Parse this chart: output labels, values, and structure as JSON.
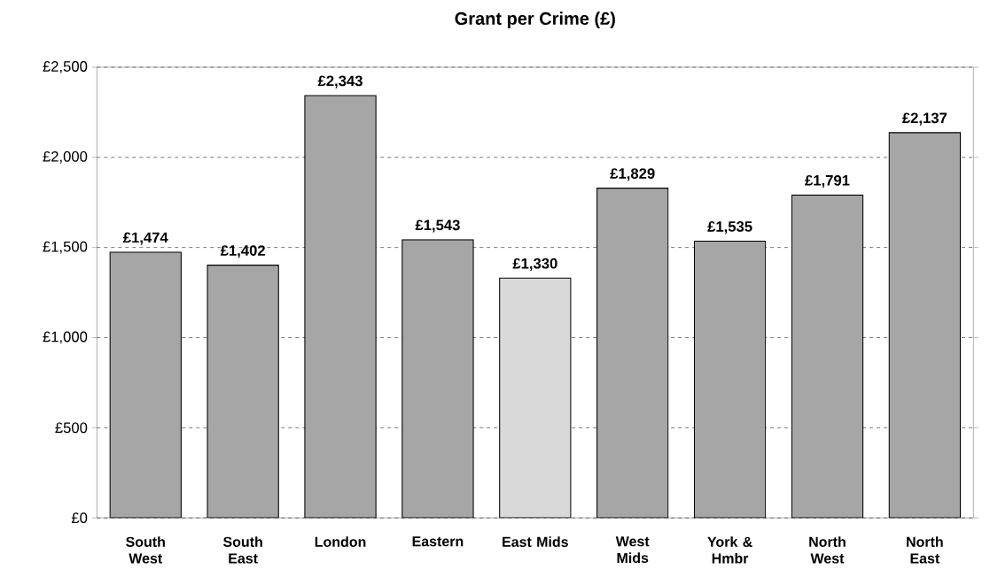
{
  "chart_data": {
    "type": "bar",
    "title": "Grant per Crime (£)",
    "categories": [
      "South West",
      "South East",
      "London",
      "Eastern",
      "East Mids",
      "West Mids",
      "York & Hmbr",
      "North West",
      "North East"
    ],
    "values": [
      1474,
      1402,
      2343,
      1543,
      1330,
      1829,
      1535,
      1791,
      2137
    ],
    "value_labels": [
      "£1,474",
      "£1,402",
      "£2,343",
      "£1,543",
      "£1,330",
      "£1,829",
      "£1,535",
      "£1,791",
      "£2,137"
    ],
    "colors": [
      "#a6a6a6",
      "#a6a6a6",
      "#a6a6a6",
      "#a6a6a6",
      "#d9d9d9",
      "#a6a6a6",
      "#a6a6a6",
      "#a6a6a6",
      "#a6a6a6"
    ],
    "ylim": [
      0,
      2500
    ],
    "yticks": [
      {
        "value": 0,
        "label": "£0"
      },
      {
        "value": 500,
        "label": "£500"
      },
      {
        "value": 1000,
        "label": "£1,000"
      },
      {
        "value": 1500,
        "label": "£1,500"
      },
      {
        "value": 2000,
        "label": "£2,000"
      },
      {
        "value": 2500,
        "label": "£2,500"
      }
    ],
    "grid": "y"
  }
}
